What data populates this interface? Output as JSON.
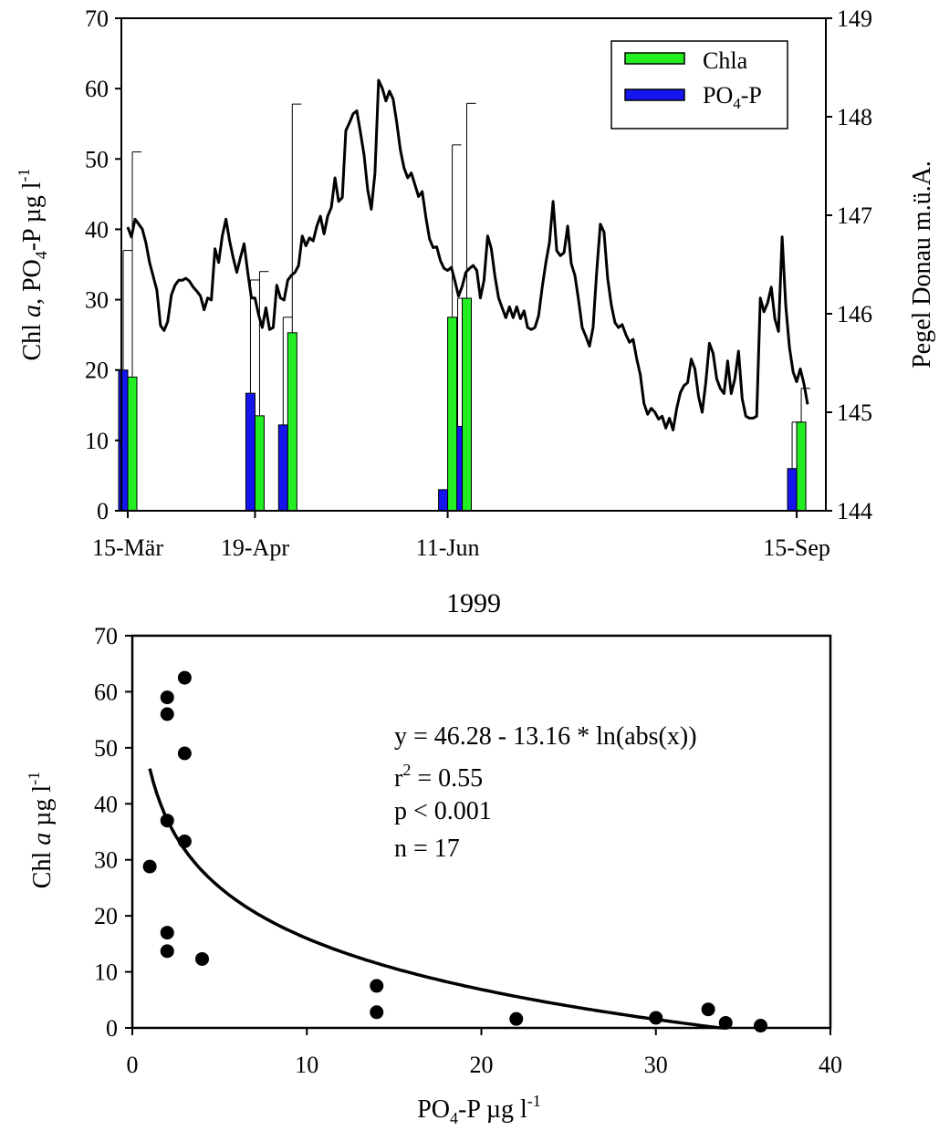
{
  "chart_data": [
    {
      "type": "bar",
      "x_axis": {
        "tick_labels": [
          "15-Mär",
          "19-Apr",
          "11-Jun",
          "15-Sep"
        ],
        "tick_days": [
          0,
          35,
          88,
          184
        ],
        "range_days": [
          0,
          187
        ],
        "label": "1999"
      },
      "y_axis_left": {
        "label_main": "Chl ",
        "label_italic": "a",
        "label_rest1": ", PO",
        "label_sub": "4",
        "label_rest2": "-P µg l",
        "label_sup": "-1",
        "range": [
          0,
          70
        ],
        "ticks": [
          0,
          10,
          20,
          30,
          40,
          50,
          60,
          70
        ]
      },
      "y_axis_right": {
        "label": "Pegel Donau m.ü.A.",
        "range": [
          144,
          149
        ],
        "ticks": [
          144,
          145,
          146,
          147,
          148,
          149
        ]
      },
      "legend": {
        "position": "top-right",
        "chla_label": "Chla",
        "po4_label_main": "PO",
        "po4_label_sub": "4",
        "po4_label_rest": "-P"
      },
      "colors": {
        "chla": "#22ee22",
        "po4": "#1515ee"
      },
      "series": [
        {
          "name": "Chla",
          "bars": [
            {
              "day": 0,
              "value": 19.0,
              "error_top": 51.0
            },
            {
              "day": 35,
              "value": 13.5,
              "error_top": 34.0
            },
            {
              "day": 44,
              "value": 25.3,
              "error_top": 57.8
            },
            {
              "day": 88,
              "value": 27.5,
              "error_top": 52.0
            },
            {
              "day": 92,
              "value": 30.2,
              "error_top": 57.9
            },
            {
              "day": 184,
              "value": 12.6,
              "error_top": 17.4
            }
          ]
        },
        {
          "name": "PO4-P",
          "bars": [
            {
              "day": 0,
              "value": 20.0,
              "error_top": 37.0
            },
            {
              "day": 35,
              "value": 16.7,
              "error_top": 32.8
            },
            {
              "day": 44,
              "value": 12.2,
              "error_top": 27.5
            },
            {
              "day": 88,
              "value": 3.0
            },
            {
              "day": 92,
              "value": 12.0,
              "error_top": 30.2
            },
            {
              "day": 184,
              "value": 6.0,
              "error_top": 12.6
            }
          ]
        },
        {
          "name": "Pegel Donau",
          "axis": "right",
          "points": [
            [
              0,
              146.88
            ],
            [
              1,
              146.78
            ],
            [
              2,
              146.96
            ],
            [
              3,
              146.91
            ],
            [
              4,
              146.86
            ],
            [
              5,
              146.72
            ],
            [
              6,
              146.52
            ],
            [
              7,
              146.38
            ],
            [
              8,
              146.24
            ],
            [
              9,
              145.88
            ],
            [
              10,
              145.83
            ],
            [
              11,
              145.92
            ],
            [
              12,
              146.19
            ],
            [
              13,
              146.29
            ],
            [
              14,
              146.34
            ],
            [
              15,
              146.34
            ],
            [
              16,
              146.36
            ],
            [
              17,
              146.33
            ],
            [
              18,
              146.27
            ],
            [
              19,
              146.23
            ],
            [
              20,
              146.18
            ],
            [
              21,
              146.04
            ],
            [
              22,
              146.16
            ],
            [
              23,
              146.14
            ],
            [
              24,
              146.66
            ],
            [
              25,
              146.52
            ],
            [
              26,
              146.79
            ],
            [
              27,
              146.96
            ],
            [
              28,
              146.74
            ],
            [
              29,
              146.57
            ],
            [
              30,
              146.42
            ],
            [
              31,
              146.57
            ],
            [
              32,
              146.71
            ],
            [
              33,
              146.42
            ],
            [
              34,
              146.16
            ],
            [
              35,
              146.16
            ],
            [
              36,
              145.99
            ],
            [
              37,
              145.86
            ],
            [
              38,
              146.06
            ],
            [
              39,
              145.84
            ],
            [
              40,
              145.86
            ],
            [
              41,
              146.29
            ],
            [
              42,
              146.16
            ],
            [
              43,
              146.14
            ],
            [
              44,
              146.34
            ],
            [
              45,
              146.39
            ],
            [
              46,
              146.42
            ],
            [
              47,
              146.49
            ],
            [
              48,
              146.79
            ],
            [
              49,
              146.69
            ],
            [
              50,
              146.77
            ],
            [
              51,
              146.74
            ],
            [
              52,
              146.89
            ],
            [
              53,
              146.99
            ],
            [
              54,
              146.81
            ],
            [
              55,
              146.99
            ],
            [
              56,
              147.08
            ],
            [
              57,
              147.38
            ],
            [
              58,
              147.14
            ],
            [
              59,
              147.18
            ],
            [
              60,
              147.86
            ],
            [
              61,
              147.94
            ],
            [
              62,
              148.03
            ],
            [
              63,
              148.06
            ],
            [
              64,
              147.84
            ],
            [
              65,
              147.61
            ],
            [
              66,
              147.26
            ],
            [
              67,
              147.06
            ],
            [
              68,
              147.43
            ],
            [
              69,
              148.37
            ],
            [
              70,
              148.29
            ],
            [
              71,
              148.16
            ],
            [
              72,
              148.26
            ],
            [
              73,
              148.18
            ],
            [
              74,
              147.94
            ],
            [
              75,
              147.66
            ],
            [
              76,
              147.48
            ],
            [
              77,
              147.38
            ],
            [
              78,
              147.43
            ],
            [
              79,
              147.31
            ],
            [
              80,
              147.19
            ],
            [
              81,
              147.24
            ],
            [
              82,
              146.98
            ],
            [
              83,
              146.76
            ],
            [
              84,
              146.67
            ],
            [
              85,
              146.68
            ],
            [
              86,
              146.54
            ],
            [
              87,
              146.46
            ],
            [
              88,
              146.44
            ],
            [
              89,
              146.47
            ],
            [
              90,
              146.33
            ],
            [
              91,
              146.18
            ],
            [
              92,
              146.28
            ],
            [
              93,
              146.42
            ],
            [
              94,
              146.46
            ],
            [
              95,
              146.49
            ],
            [
              96,
              146.44
            ],
            [
              97,
              146.16
            ],
            [
              98,
              146.34
            ],
            [
              99,
              146.79
            ],
            [
              100,
              146.66
            ],
            [
              101,
              146.38
            ],
            [
              102,
              146.16
            ],
            [
              103,
              146.06
            ],
            [
              104,
              145.96
            ],
            [
              105,
              146.07
            ],
            [
              106,
              145.96
            ],
            [
              107,
              146.07
            ],
            [
              108,
              145.95
            ],
            [
              109,
              146.03
            ],
            [
              110,
              145.86
            ],
            [
              111,
              145.84
            ],
            [
              112,
              145.86
            ],
            [
              113,
              145.98
            ],
            [
              114,
              146.27
            ],
            [
              115,
              146.52
            ],
            [
              116,
              146.72
            ],
            [
              117,
              147.14
            ],
            [
              118,
              146.64
            ],
            [
              119,
              146.59
            ],
            [
              120,
              146.62
            ],
            [
              121,
              146.89
            ],
            [
              122,
              146.51
            ],
            [
              123,
              146.39
            ],
            [
              124,
              146.14
            ],
            [
              125,
              145.86
            ],
            [
              126,
              145.77
            ],
            [
              127,
              145.67
            ],
            [
              128,
              145.86
            ],
            [
              129,
              146.43
            ],
            [
              130,
              146.91
            ],
            [
              131,
              146.83
            ],
            [
              132,
              146.36
            ],
            [
              133,
              146.09
            ],
            [
              134,
              145.91
            ],
            [
              135,
              145.86
            ],
            [
              136,
              145.89
            ],
            [
              137,
              145.79
            ],
            [
              138,
              145.71
            ],
            [
              139,
              145.74
            ],
            [
              140,
              145.54
            ],
            [
              141,
              145.38
            ],
            [
              142,
              145.09
            ],
            [
              143,
              144.98
            ],
            [
              144,
              145.04
            ],
            [
              145,
              145.0
            ],
            [
              146,
              144.93
            ],
            [
              147,
              144.96
            ],
            [
              148,
              144.84
            ],
            [
              149,
              144.94
            ],
            [
              150,
              144.82
            ],
            [
              151,
              145.04
            ],
            [
              152,
              145.2
            ],
            [
              153,
              145.27
            ],
            [
              154,
              145.3
            ],
            [
              155,
              145.54
            ],
            [
              156,
              145.44
            ],
            [
              157,
              145.16
            ],
            [
              158,
              145.0
            ],
            [
              159,
              145.3
            ],
            [
              160,
              145.7
            ],
            [
              161,
              145.6
            ],
            [
              162,
              145.34
            ],
            [
              163,
              145.24
            ],
            [
              164,
              145.19
            ],
            [
              165,
              145.52
            ],
            [
              166,
              145.19
            ],
            [
              167,
              145.34
            ],
            [
              168,
              145.62
            ],
            [
              169,
              145.14
            ],
            [
              170,
              144.96
            ],
            [
              171,
              144.94
            ],
            [
              172,
              144.94
            ],
            [
              173,
              144.96
            ],
            [
              174,
              146.16
            ],
            [
              175,
              146.02
            ],
            [
              176,
              146.11
            ],
            [
              177,
              146.27
            ],
            [
              178,
              145.95
            ],
            [
              179,
              145.82
            ],
            [
              180,
              146.78
            ],
            [
              181,
              146.08
            ],
            [
              182,
              145.66
            ],
            [
              183,
              145.41
            ],
            [
              184,
              145.31
            ],
            [
              185,
              145.44
            ],
            [
              186,
              145.29
            ],
            [
              187,
              145.08
            ]
          ]
        }
      ]
    },
    {
      "type": "scatter",
      "x_axis": {
        "label_main": "PO",
        "label_sub": "4",
        "label_rest": "-P µg l",
        "label_sup": "-1",
        "range": [
          0,
          40
        ],
        "ticks": [
          0,
          10,
          20,
          30,
          40
        ]
      },
      "y_axis": {
        "label_main": "Chl ",
        "label_italic": "a",
        "label_rest": " µg l",
        "label_sup": "-1",
        "range": [
          0,
          70
        ],
        "ticks": [
          0,
          10,
          20,
          30,
          40,
          50,
          60,
          70
        ]
      },
      "points": [
        [
          3,
          62.5
        ],
        [
          2,
          59
        ],
        [
          2,
          56
        ],
        [
          3,
          49
        ],
        [
          2,
          37
        ],
        [
          3,
          33.3
        ],
        [
          1,
          28.8
        ],
        [
          2,
          17
        ],
        [
          2,
          13.7
        ],
        [
          4,
          12.3
        ],
        [
          14,
          7.5
        ],
        [
          14,
          2.8
        ],
        [
          22,
          1.6
        ],
        [
          30,
          1.8
        ],
        [
          33,
          3.3
        ],
        [
          34,
          0.9
        ],
        [
          36,
          0.4
        ]
      ],
      "fit": {
        "a": 46.28,
        "b": 13.16,
        "x_range": [
          1,
          34
        ]
      },
      "annotation": {
        "equation": "y = 46.28 - 13.16 * ln(abs(x))",
        "r2_main": "r",
        "r2_sup": "2",
        "r2_rest": " = 0.55",
        "p": "p < 0.001",
        "n": "n = 17"
      }
    }
  ]
}
